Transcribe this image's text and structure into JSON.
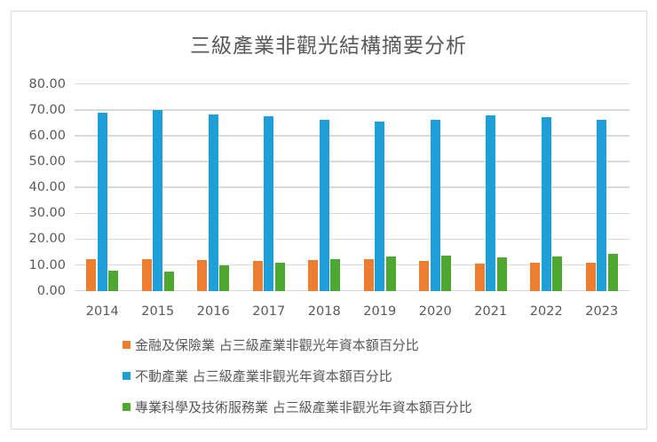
{
  "chart_data": {
    "type": "bar",
    "title": "三級產業非觀光結構摘要分析",
    "xlabel": "",
    "ylabel": "",
    "ylim": [
      0,
      80
    ],
    "yticks": [
      "0.00",
      "10.00",
      "20.00",
      "30.00",
      "40.00",
      "50.00",
      "60.00",
      "70.00",
      "80.00"
    ],
    "grid": true,
    "legend_position": "bottom",
    "categories": [
      "2014",
      "2015",
      "2016",
      "2017",
      "2018",
      "2019",
      "2020",
      "2021",
      "2022",
      "2023"
    ],
    "series": [
      {
        "name": "金融及保險業 占三級產業非觀光年資本額百分比",
        "color": "#ED7D31",
        "values": [
          12.3,
          12.3,
          12.0,
          11.6,
          12.0,
          12.1,
          11.6,
          10.5,
          11.0,
          11.0
        ]
      },
      {
        "name": "不動產業 占三級產業非觀光年資本額百分比",
        "color": "#1E9FD8",
        "values": [
          68.9,
          69.9,
          68.3,
          67.7,
          66.1,
          65.6,
          66.1,
          67.8,
          67.3,
          66.3
        ]
      },
      {
        "name": "專業科學及技術服務業 占三級產業非觀光年資本額百分比",
        "color": "#4EA72E",
        "values": [
          7.9,
          7.5,
          9.7,
          10.9,
          12.4,
          13.2,
          13.5,
          12.9,
          13.3,
          14.4
        ]
      }
    ]
  }
}
